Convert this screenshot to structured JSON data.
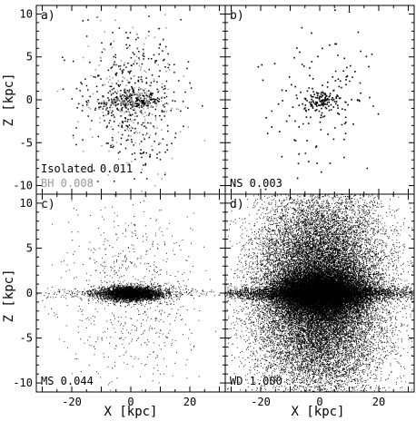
{
  "chart_data": {
    "type": "scatter",
    "layout": "2x2 panels, shared axes",
    "xlabel": "X [kpc]",
    "ylabel": "Z [kpc]",
    "xlim": [
      -32,
      32
    ],
    "ylim": [
      -11,
      11
    ],
    "xticks": [
      -20,
      0,
      20
    ],
    "yticks": [
      -10,
      -5,
      0,
      5,
      10
    ],
    "panels": [
      {
        "label": "a)",
        "annotations": [
          {
            "text": "Isolated 0.011",
            "color": "#000000"
          },
          {
            "text": "BH 0.008",
            "color": "#999999"
          }
        ],
        "series": [
          {
            "color": "#000000",
            "marker_size": 1.5,
            "points": "about 600 isolated points; disk |Z|<1 dominated within |X|<18, broad halo to |Z|~10"
          },
          {
            "color": "#999999",
            "marker_size": 1.5,
            "points": "about 300 black hole points concentrated in inner disk"
          }
        ]
      },
      {
        "label": "b)",
        "annotations": [
          {
            "text": "NS 0.003",
            "color": "#000000"
          }
        ],
        "series": [
          {
            "color": "#000000",
            "marker_size": 1.6,
            "points": "about 260 points; compact core within |X|<6, |Z|<1.5"
          }
        ]
      },
      {
        "label": "c)",
        "annotations": [
          {
            "text": "MS 0.044",
            "color": "#000000"
          }
        ],
        "series": [
          {
            "color": "#000000",
            "marker_size": 0.9,
            "points": "about 5000 points; thin dense disk |X|<10, faint halo"
          }
        ]
      },
      {
        "label": "d)",
        "annotations": [
          {
            "text": "WD 1.000",
            "color": "#000000"
          }
        ],
        "series": [
          {
            "color": "#000000",
            "marker_size": 0.9,
            "points": "about 40000 points; saturated core with bulge, extended halo filling panel"
          }
        ]
      }
    ]
  }
}
